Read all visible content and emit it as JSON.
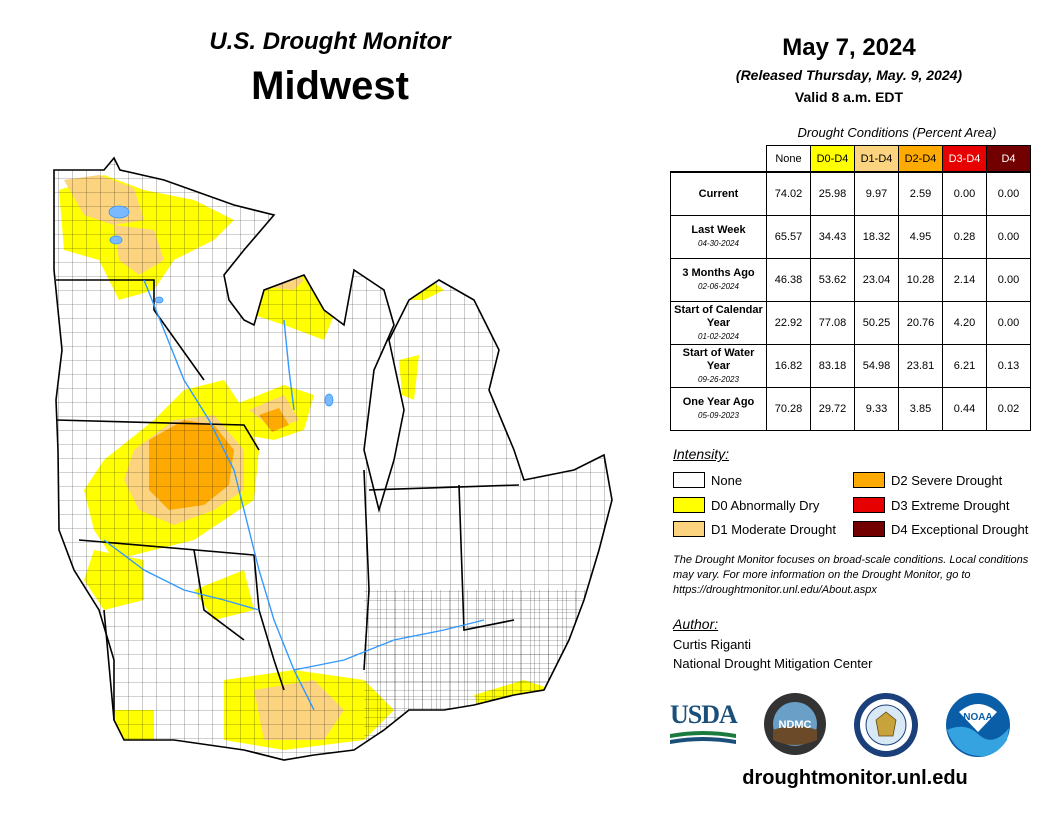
{
  "header": {
    "title": "U.S. Drought Monitor",
    "region": "Midwest",
    "date": "May 7, 2024",
    "released": "(Released Thursday, May. 9, 2024)",
    "valid": "Valid 8 a.m. EDT"
  },
  "table": {
    "caption": "Drought Conditions (Percent Area)",
    "columns": [
      "None",
      "D0-D4",
      "D1-D4",
      "D2-D4",
      "D3-D4",
      "D4"
    ],
    "column_colors": [
      "#ffffff",
      "#ffff00",
      "#fcd37f",
      "#ffaa00",
      "#e60000",
      "#730000"
    ],
    "rows": [
      {
        "label": "Current",
        "sublabel": "",
        "values": [
          "74.02",
          "25.98",
          "9.97",
          "2.59",
          "0.00",
          "0.00"
        ]
      },
      {
        "label": "Last Week",
        "sublabel": "04-30-2024",
        "values": [
          "65.57",
          "34.43",
          "18.32",
          "4.95",
          "0.28",
          "0.00"
        ]
      },
      {
        "label": "3 Months Ago",
        "sublabel": "02-06-2024",
        "values": [
          "46.38",
          "53.62",
          "23.04",
          "10.28",
          "2.14",
          "0.00"
        ]
      },
      {
        "label": "Start of Calendar Year",
        "sublabel": "01-02-2024",
        "values": [
          "22.92",
          "77.08",
          "50.25",
          "20.76",
          "4.20",
          "0.00"
        ]
      },
      {
        "label": "Start of Water Year",
        "sublabel": "09-26-2023",
        "values": [
          "16.82",
          "83.18",
          "54.98",
          "23.81",
          "6.21",
          "0.13"
        ]
      },
      {
        "label": "One Year Ago",
        "sublabel": "05-09-2023",
        "values": [
          "70.28",
          "29.72",
          "9.33",
          "3.85",
          "0.44",
          "0.02"
        ]
      }
    ]
  },
  "legend": {
    "title": "Intensity:",
    "items": [
      {
        "label": "None",
        "color": "#ffffff"
      },
      {
        "label": "D0 Abnormally Dry",
        "color": "#ffff00"
      },
      {
        "label": "D1 Moderate Drought",
        "color": "#fcd37f"
      },
      {
        "label": "D2 Severe Drought",
        "color": "#ffaa00"
      },
      {
        "label": "D3 Extreme Drought",
        "color": "#e60000"
      },
      {
        "label": "D4 Exceptional Drought",
        "color": "#730000"
      }
    ]
  },
  "note": "The Drought Monitor focuses on broad-scale conditions. Local conditions may vary. For more information on the Drought Monitor, go to https://droughtmonitor.unl.edu/About.aspx",
  "author": {
    "title": "Author:",
    "name": "Curtis Riganti",
    "org": "National Drought Mitigation Center"
  },
  "logos": {
    "usda": "USDA",
    "ndmc": "NDMC",
    "noaa": "NOAA"
  },
  "url": "droughtmonitor.unl.edu"
}
